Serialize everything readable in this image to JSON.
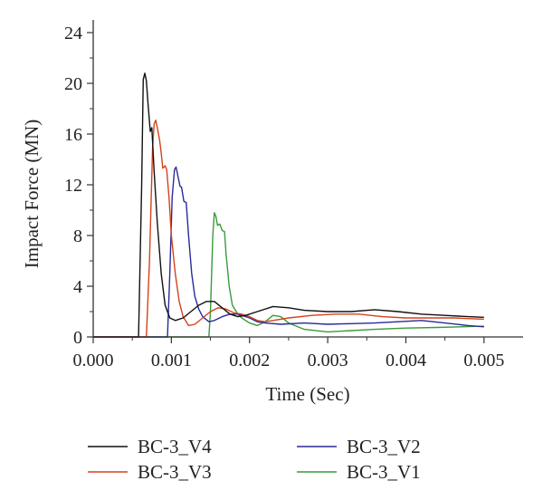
{
  "chart_data": {
    "type": "line",
    "title": "",
    "xlabel": "Time (Sec)",
    "ylabel": "Impact Force (MN)",
    "xlim": [
      0.0,
      0.0055
    ],
    "ylim": [
      0,
      25
    ],
    "xticks": [
      {
        "value": 0.0,
        "label": "0.000"
      },
      {
        "value": 0.001,
        "label": "0.001"
      },
      {
        "value": 0.002,
        "label": "0.002"
      },
      {
        "value": 0.003,
        "label": "0.003"
      },
      {
        "value": 0.004,
        "label": "0.004"
      },
      {
        "value": 0.005,
        "label": "0.005"
      }
    ],
    "yticks": [
      {
        "value": 0,
        "label": "0"
      },
      {
        "value": 4,
        "label": "4"
      },
      {
        "value": 8,
        "label": "8"
      },
      {
        "value": 12,
        "label": "12"
      },
      {
        "value": 16,
        "label": "16"
      },
      {
        "value": 20,
        "label": "20"
      },
      {
        "value": 24,
        "label": "24"
      }
    ],
    "grid": false,
    "legend_position": "bottom",
    "series": [
      {
        "name": "BC-3_V4",
        "color": "#111111",
        "points": [
          [
            0.0,
            0
          ],
          [
            0.00058,
            0
          ],
          [
            0.00062,
            12
          ],
          [
            0.00064,
            20.3
          ],
          [
            0.00066,
            20.8
          ],
          [
            0.00068,
            20.2
          ],
          [
            0.0007,
            18.5
          ],
          [
            0.00073,
            16.2
          ],
          [
            0.00075,
            16.5
          ],
          [
            0.00078,
            13
          ],
          [
            0.00082,
            9
          ],
          [
            0.00087,
            5
          ],
          [
            0.00092,
            2.5
          ],
          [
            0.00098,
            1.5
          ],
          [
            0.00105,
            1.3
          ],
          [
            0.00115,
            1.5
          ],
          [
            0.00125,
            2.0
          ],
          [
            0.00135,
            2.5
          ],
          [
            0.00145,
            2.8
          ],
          [
            0.00155,
            2.8
          ],
          [
            0.00165,
            2.3
          ],
          [
            0.00175,
            1.8
          ],
          [
            0.00185,
            1.6
          ],
          [
            0.00195,
            1.7
          ],
          [
            0.0021,
            2.0
          ],
          [
            0.0023,
            2.4
          ],
          [
            0.0025,
            2.3
          ],
          [
            0.0027,
            2.1
          ],
          [
            0.003,
            2.0
          ],
          [
            0.0033,
            2.0
          ],
          [
            0.0036,
            2.15
          ],
          [
            0.0039,
            2.0
          ],
          [
            0.0042,
            1.8
          ],
          [
            0.0045,
            1.7
          ],
          [
            0.0048,
            1.6
          ],
          [
            0.005,
            1.55
          ]
        ]
      },
      {
        "name": "BC-3_V3",
        "color": "#d4421c",
        "points": [
          [
            0.0,
            0
          ],
          [
            0.00068,
            0
          ],
          [
            0.00072,
            6
          ],
          [
            0.00076,
            15
          ],
          [
            0.00078,
            16.8
          ],
          [
            0.0008,
            17.1
          ],
          [
            0.00082,
            16.5
          ],
          [
            0.00085,
            15.5
          ],
          [
            0.00087,
            14.5
          ],
          [
            0.00089,
            13.3
          ],
          [
            0.00092,
            13.5
          ],
          [
            0.00094,
            13.2
          ],
          [
            0.00097,
            11
          ],
          [
            0.001,
            8
          ],
          [
            0.00105,
            5
          ],
          [
            0.0011,
            2.8
          ],
          [
            0.00115,
            1.6
          ],
          [
            0.00122,
            0.9
          ],
          [
            0.0013,
            1.0
          ],
          [
            0.0014,
            1.5
          ],
          [
            0.0015,
            2.0
          ],
          [
            0.0016,
            2.3
          ],
          [
            0.0017,
            2.2
          ],
          [
            0.0018,
            1.9
          ],
          [
            0.0019,
            1.8
          ],
          [
            0.002,
            1.6
          ],
          [
            0.0021,
            1.3
          ],
          [
            0.0022,
            1.2
          ],
          [
            0.0023,
            1.3
          ],
          [
            0.0025,
            1.5
          ],
          [
            0.0028,
            1.7
          ],
          [
            0.0031,
            1.8
          ],
          [
            0.0034,
            1.8
          ],
          [
            0.0037,
            1.6
          ],
          [
            0.004,
            1.5
          ],
          [
            0.0043,
            1.5
          ],
          [
            0.0046,
            1.5
          ],
          [
            0.005,
            1.4
          ]
        ]
      },
      {
        "name": "BC-3_V2",
        "color": "#2a2a9a",
        "points": [
          [
            0.0,
            0
          ],
          [
            0.00095,
            0
          ],
          [
            0.00098,
            5
          ],
          [
            0.00101,
            11
          ],
          [
            0.00104,
            13.2
          ],
          [
            0.00106,
            13.4
          ],
          [
            0.00109,
            12.5
          ],
          [
            0.00111,
            11.9
          ],
          [
            0.00113,
            11.8
          ],
          [
            0.00116,
            10.7
          ],
          [
            0.00119,
            10.6
          ],
          [
            0.00122,
            8
          ],
          [
            0.00126,
            5
          ],
          [
            0.0013,
            3.2
          ],
          [
            0.00135,
            2.2
          ],
          [
            0.0014,
            1.6
          ],
          [
            0.00148,
            1.2
          ],
          [
            0.00155,
            1.3
          ],
          [
            0.00165,
            1.6
          ],
          [
            0.00175,
            1.8
          ],
          [
            0.00185,
            1.8
          ],
          [
            0.002,
            1.5
          ],
          [
            0.0021,
            1.2
          ],
          [
            0.0022,
            1.1
          ],
          [
            0.0024,
            1.0
          ],
          [
            0.0027,
            1.1
          ],
          [
            0.003,
            1.0
          ],
          [
            0.0033,
            1.05
          ],
          [
            0.0036,
            1.1
          ],
          [
            0.0039,
            1.2
          ],
          [
            0.0042,
            1.3
          ],
          [
            0.0045,
            1.1
          ],
          [
            0.0048,
            0.9
          ],
          [
            0.005,
            0.8
          ]
        ]
      },
      {
        "name": "BC-3_V1",
        "color": "#3a9a3a",
        "points": [
          [
            0.0,
            0
          ],
          [
            0.00148,
            0
          ],
          [
            0.0015,
            2
          ],
          [
            0.00153,
            8
          ],
          [
            0.00155,
            9.8
          ],
          [
            0.00157,
            9.5
          ],
          [
            0.00159,
            8.8
          ],
          [
            0.00162,
            8.9
          ],
          [
            0.00165,
            8.4
          ],
          [
            0.00168,
            8.3
          ],
          [
            0.0017,
            6.5
          ],
          [
            0.00174,
            4
          ],
          [
            0.00178,
            2.5
          ],
          [
            0.00185,
            1.8
          ],
          [
            0.0019,
            1.5
          ],
          [
            0.002,
            1.1
          ],
          [
            0.0021,
            0.9
          ],
          [
            0.0022,
            1.2
          ],
          [
            0.0023,
            1.7
          ],
          [
            0.0024,
            1.6
          ],
          [
            0.0025,
            1.1
          ],
          [
            0.0027,
            0.6
          ],
          [
            0.003,
            0.4
          ],
          [
            0.0033,
            0.5
          ],
          [
            0.0036,
            0.6
          ],
          [
            0.004,
            0.7
          ],
          [
            0.0044,
            0.75
          ],
          [
            0.0047,
            0.8
          ],
          [
            0.005,
            0.85
          ]
        ]
      }
    ]
  }
}
